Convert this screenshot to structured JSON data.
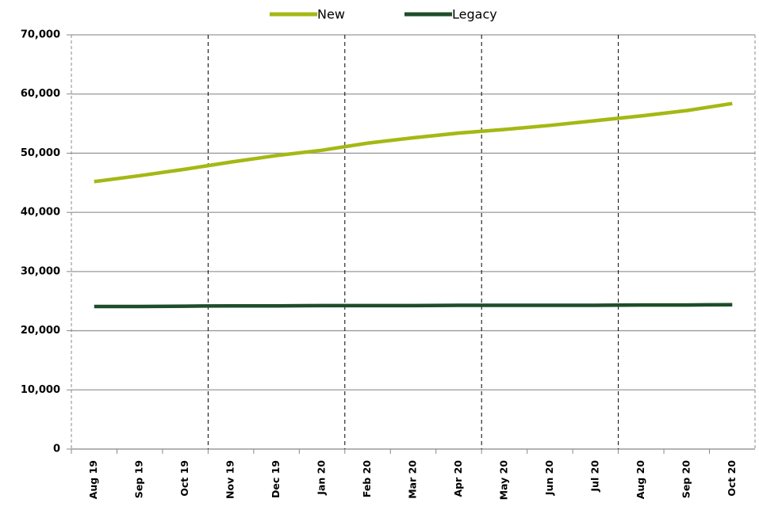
{
  "chart_data": {
    "type": "line",
    "categories": [
      "Aug 19",
      "Sep 19",
      "Oct 19",
      "Nov 19",
      "Dec 19",
      "Jan 20",
      "Feb 20",
      "Mar 20",
      "Apr 20",
      "May 20",
      "Jun 20",
      "Jul 20",
      "Aug 20",
      "Sep 20",
      "Oct 20"
    ],
    "series": [
      {
        "name": "New",
        "color": "#a5b814",
        "values": [
          45200,
          46200,
          47300,
          48500,
          49600,
          50500,
          51700,
          52600,
          53400,
          54000,
          54700,
          55500,
          56300,
          57200,
          58400
        ]
      },
      {
        "name": "Legacy",
        "color": "#1e4d2b",
        "values": [
          24100,
          24100,
          24150,
          24200,
          24200,
          24250,
          24250,
          24250,
          24300,
          24300,
          24300,
          24300,
          24350,
          24350,
          24400
        ]
      }
    ],
    "ylim": [
      0,
      70000
    ],
    "yticks": [
      0,
      {
        "value": 10000,
        "label": "10,000"
      },
      {
        "value": 20000,
        "label": "20,000"
      },
      {
        "value": 30000,
        "label": "30,000"
      },
      {
        "value": 40000,
        "label": "40,000"
      },
      {
        "value": 50000,
        "label": "50,000"
      },
      {
        "value": 60000,
        "label": "60,000"
      },
      {
        "value": 70000,
        "label": "70,000"
      }
    ],
    "grid": true,
    "legend": "top"
  }
}
